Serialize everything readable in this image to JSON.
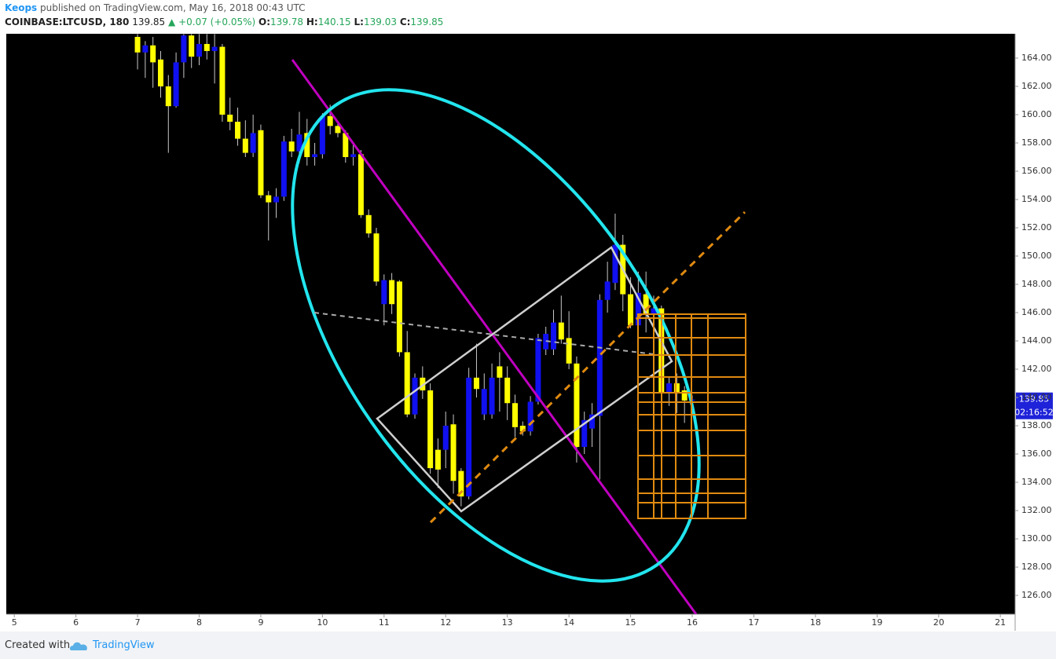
{
  "header": {
    "author": "Keops",
    "published": "published on TradingView.com, May 16, 2018 00:43 UTC",
    "symbol": "COINBASE:LTCUSD, 180",
    "last": "139.85",
    "change": "▲ +0.07 (+0.05%)",
    "o_label": "O:",
    "o": "139.78",
    "h_label": "H:",
    "h": "140.15",
    "l_label": "L:",
    "l": "139.03",
    "c_label": "C:",
    "c": "139.85"
  },
  "footer": {
    "created": "Created with",
    "brand": "TradingView"
  },
  "chart_data": {
    "type": "candlestick",
    "x": [
      7,
      7.125,
      7.25,
      7.375,
      7.5,
      7.625,
      7.75,
      7.875,
      8,
      8.125,
      8.25,
      8.375,
      8.5,
      8.625,
      8.75,
      8.875,
      9,
      9.125,
      9.25,
      9.375,
      9.5,
      9.625,
      9.75,
      9.875,
      10,
      10.125,
      10.25,
      10.375,
      10.5,
      10.625,
      10.75,
      10.875,
      11,
      11.125,
      11.25,
      11.375,
      11.5,
      11.625,
      11.75,
      11.875,
      12,
      12.125,
      12.25,
      12.375,
      12.5,
      12.625,
      12.75,
      12.875,
      13,
      13.125,
      13.25,
      13.375,
      13.5,
      13.625,
      13.75,
      13.875,
      14,
      14.125,
      14.25,
      14.375,
      14.5,
      14.625,
      14.75,
      14.875,
      15,
      15.125,
      15.25,
      15.375,
      15.5,
      15.625,
      15.75,
      15.875,
      16
    ],
    "open": [
      165.5,
      164.4,
      164.9,
      163.9,
      162.0,
      160.6,
      163.7,
      165.6,
      164.1,
      165.0,
      164.5,
      164.8,
      160.0,
      159.5,
      158.3,
      157.3,
      158.9,
      154.3,
      153.8,
      154.2,
      158.1,
      157.4,
      158.7,
      157.0,
      157.2,
      159.9,
      159.2,
      158.7,
      157.0,
      157.2,
      152.9,
      151.6,
      146.6,
      148.3,
      148.2,
      143.2,
      138.8,
      141.4,
      140.5,
      136.3,
      136.3,
      138.1,
      134.8,
      133.0,
      141.4,
      138.8,
      138.8,
      142.2,
      141.4,
      139.6,
      138.0,
      137.6,
      139.7,
      143.4,
      143.4,
      145.3,
      144.2,
      142.4,
      136.5,
      137.8,
      138.7,
      146.9,
      148.1,
      150.8,
      147.3,
      145.1,
      147.3,
      145.9,
      146.3,
      140.3,
      141.0,
      140.5,
      139.78
    ],
    "high": [
      165.7,
      165.2,
      165.5,
      164.5,
      162.8,
      164.4,
      165.7,
      165.7,
      165.7,
      165.7,
      165.7,
      165.0,
      161.2,
      160.5,
      159.6,
      160.0,
      159.3,
      154.6,
      154.8,
      158.5,
      159.0,
      160.2,
      159.7,
      158.0,
      160.1,
      160.7,
      159.5,
      158.9,
      158.0,
      157.5,
      153.3,
      152.0,
      148.7,
      148.8,
      148.3,
      144.7,
      141.7,
      142.2,
      141.0,
      137.1,
      139.0,
      138.8,
      135.0,
      142.1,
      143.8,
      141.7,
      142.4,
      143.2,
      142.2,
      140.2,
      138.3,
      140.1,
      144.5,
      145.0,
      146.2,
      147.2,
      146.1,
      142.9,
      139.0,
      139.6,
      147.3,
      149.6,
      153.0,
      151.5,
      148.5,
      148.9,
      148.9,
      147.2,
      146.5,
      141.5,
      141.7,
      140.8,
      140.15
    ],
    "low": [
      163.2,
      162.6,
      161.9,
      161.2,
      157.3,
      160.5,
      162.6,
      163.3,
      163.5,
      163.9,
      162.2,
      159.5,
      158.9,
      157.8,
      157.0,
      157.0,
      154.1,
      151.1,
      152.7,
      153.9,
      157.0,
      156.6,
      156.4,
      156.4,
      156.9,
      158.6,
      158.4,
      156.6,
      156.4,
      152.7,
      151.3,
      147.9,
      145.1,
      145.9,
      142.9,
      138.6,
      138.5,
      139.9,
      134.6,
      133.6,
      135.0,
      133.2,
      132.3,
      132.8,
      140.0,
      138.4,
      138.5,
      139.0,
      138.4,
      137.2,
      137.3,
      137.3,
      139.5,
      143.0,
      143.0,
      143.8,
      142.0,
      135.4,
      136.0,
      136.5,
      134.2,
      146.0,
      147.6,
      146.1,
      144.9,
      144.5,
      144.6,
      145.2,
      139.9,
      139.4,
      138.9,
      138.2,
      139.03
    ],
    "close": [
      164.4,
      164.9,
      163.7,
      162.0,
      160.6,
      163.7,
      165.6,
      164.1,
      165.0,
      164.5,
      164.8,
      160.0,
      159.5,
      158.3,
      157.3,
      158.7,
      154.3,
      153.8,
      154.2,
      158.1,
      157.4,
      158.6,
      157.0,
      157.2,
      159.9,
      159.2,
      158.7,
      157.0,
      157.2,
      152.9,
      151.6,
      148.2,
      148.3,
      146.6,
      143.2,
      138.8,
      141.4,
      140.5,
      135.0,
      134.9,
      138.0,
      134.1,
      133.0,
      141.4,
      140.6,
      140.6,
      141.4,
      141.4,
      139.6,
      137.9,
      137.6,
      139.7,
      144.2,
      144.5,
      145.3,
      144.1,
      142.4,
      136.5,
      138.4,
      138.8,
      146.9,
      148.2,
      150.8,
      147.3,
      145.1,
      147.4,
      145.9,
      146.3,
      140.3,
      141.0,
      140.3,
      139.78,
      139.85
    ],
    "up_color": "#1010f0",
    "down_color": "#ffff00",
    "wick_color": "#c8c8c8",
    "background": "#000000",
    "xlim": [
      4.87,
      21.24
    ],
    "xticks": [
      5,
      6,
      7,
      8,
      9,
      10,
      11,
      12,
      13,
      14,
      15,
      16,
      17,
      18,
      19,
      20,
      21
    ],
    "ylim": [
      124.67,
      165.72
    ],
    "yticks": [
      {
        "value": 126,
        "label": "126.00"
      },
      {
        "value": 128,
        "label": "128.00"
      },
      {
        "value": 130,
        "label": "130.00"
      },
      {
        "value": 132,
        "label": "132.00"
      },
      {
        "value": 134,
        "label": "134.00"
      },
      {
        "value": 136,
        "label": "136.00"
      },
      {
        "value": 138,
        "label": "138.00"
      },
      {
        "value": 140,
        "label": "140.00"
      },
      {
        "value": 142,
        "label": "142.00"
      },
      {
        "value": 144,
        "label": "144.00"
      },
      {
        "value": 146,
        "label": "146.00"
      },
      {
        "value": 148,
        "label": "148.00"
      },
      {
        "value": 150,
        "label": "150.00"
      },
      {
        "value": 152,
        "label": "152.00"
      },
      {
        "value": 154,
        "label": "154.00"
      },
      {
        "value": 156,
        "label": "156.00"
      },
      {
        "value": 158,
        "label": "158.00"
      },
      {
        "value": 160,
        "label": "160.00"
      },
      {
        "value": 162,
        "label": "162.00"
      },
      {
        "value": 164,
        "label": "164.00"
      }
    ],
    "price_label": "139.85",
    "countdown": "02:16:52",
    "axis": "right"
  }
}
